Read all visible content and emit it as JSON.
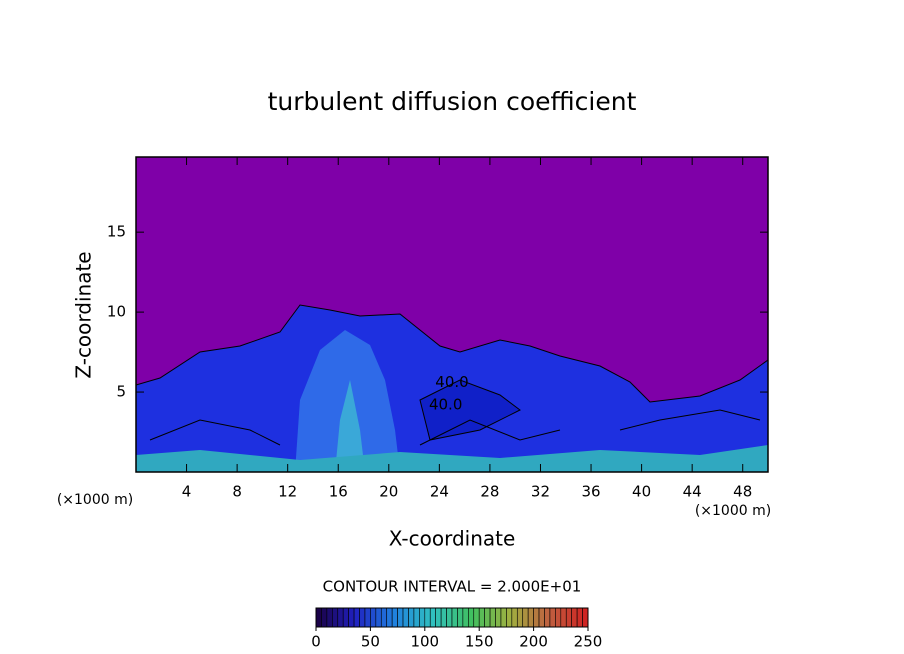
{
  "chart_data": {
    "type": "contour",
    "title": "turbulent diffusion coefficient",
    "x_label": "X-coordinate",
    "y_label": "Z-coordinate",
    "x_unit_labels": [
      "(×1000 m)",
      "(×1000 m)"
    ],
    "xlim": [
      0,
      50
    ],
    "xticks": [
      4,
      8,
      12,
      16,
      20,
      24,
      28,
      32,
      36,
      40,
      44,
      48
    ],
    "ylim": [
      0,
      19.7
    ],
    "yticks": [
      5,
      10,
      15
    ],
    "background_color": "#7f00a8",
    "contour_labels": [
      {
        "value": 40,
        "label": "40.0",
        "x": 25,
        "z": 5.6
      },
      {
        "value": 40,
        "label": "40.0",
        "x": 24.5,
        "z": 4.2
      }
    ],
    "contour_interval_label": "CONTOUR INTERVAL = 2.000E+01",
    "colorbar": {
      "lim": [
        0,
        250
      ],
      "ticks": [
        0,
        50,
        100,
        150,
        200,
        250
      ],
      "colors": [
        "#1a0040",
        "#2020c0",
        "#2080e0",
        "#30c0c0",
        "#40c060",
        "#a0b040",
        "#c06040",
        "#d02020"
      ]
    }
  }
}
